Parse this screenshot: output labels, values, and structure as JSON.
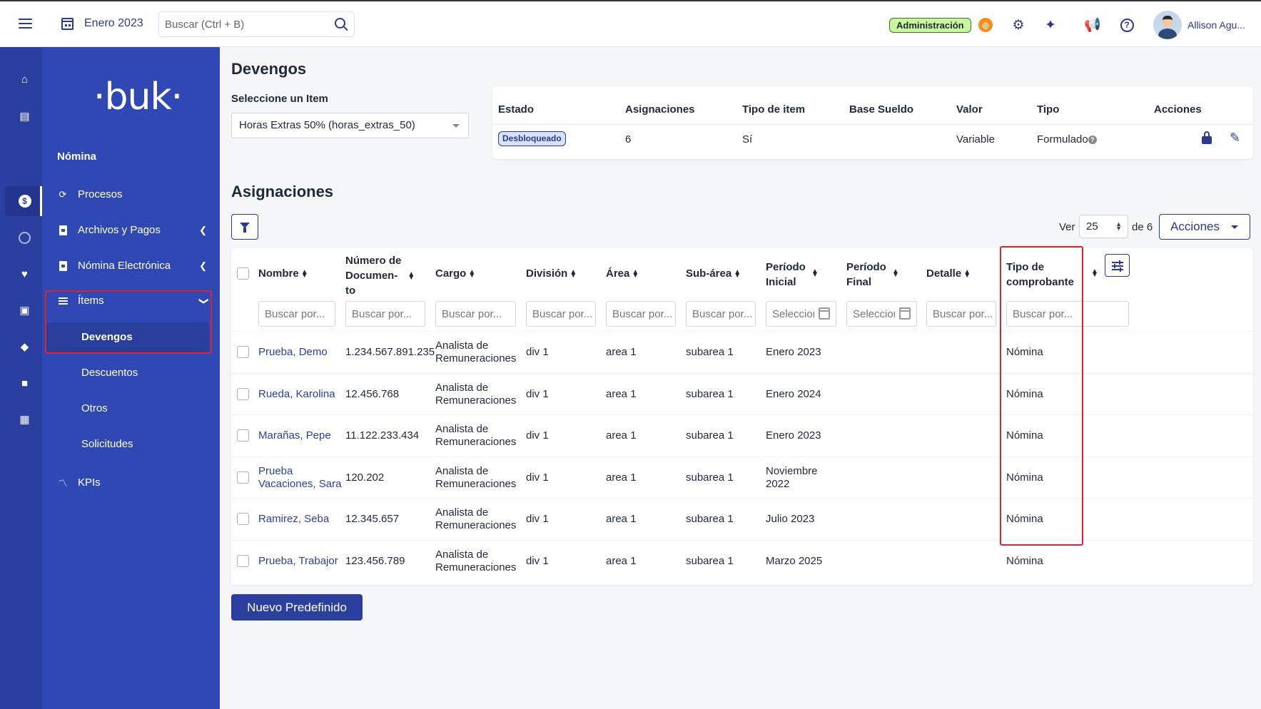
{
  "topbar": {
    "month": "Enero 2023",
    "search_placeholder": "Buscar (Ctrl + B)",
    "admin_badge": "Administración",
    "user_name": "Allison Agu..."
  },
  "sidebar": {
    "logo": "·buk·",
    "section": "Nómina",
    "items": {
      "procesos": "Procesos",
      "archivos": "Archivos y Pagos",
      "electronica": "Nómina Electrónica",
      "items": "Ítems",
      "kpis": "KPIs"
    },
    "sub_items": {
      "devengos": "Devengos",
      "descuentos": "Descuentos",
      "otros": "Otros",
      "solicitudes": "Solicitudes"
    }
  },
  "page": {
    "title": "Devengos",
    "select_label": "Seleccione un Item",
    "selected_item": "Horas Extras 50% (horas_extras_50)"
  },
  "info": {
    "headers": {
      "estado": "Estado",
      "asignaciones": "Asignaciones",
      "tipo_item": "Tipo de item",
      "base_sueldo": "Base Sueldo",
      "valor": "Valor",
      "tipo": "Tipo",
      "acciones": "Acciones"
    },
    "values": {
      "estado": "Desbloqueado",
      "asignaciones": "6",
      "tipo_item": "Sí",
      "base_sueldo": "",
      "valor": "Variable",
      "tipo": "Formulado"
    }
  },
  "asignaciones": {
    "title": "Asignaciones",
    "ver_label": "Ver",
    "per_page": "25",
    "de_label": "de 6",
    "acciones_label": "Acciones",
    "new_button": "Nuevo Predefinido"
  },
  "table": {
    "headers": {
      "nombre": "Nombre",
      "documento_1": "Número de",
      "documento_2": "Documen-",
      "documento_3": "to",
      "cargo": "Cargo",
      "division": "División",
      "area": "Área",
      "subarea": "Sub-área",
      "periodo_inicial_1": "Período",
      "periodo_inicial_2": "Inicial",
      "periodo_final_1": "Período",
      "periodo_final_2": "Final",
      "detalle": "Detalle",
      "tipo_comp_1": "Tipo de",
      "tipo_comp_2": "comprobante"
    },
    "filters": {
      "nombre": "Buscar por...",
      "documento": "Buscar por...",
      "cargo": "Buscar por...",
      "division": "Buscar por...",
      "area": "Buscar por...",
      "subarea": "Buscar por...",
      "periodo_inicial": "Selecciona",
      "periodo_final": "Selecciona",
      "detalle": "Buscar por...",
      "tipo_comp": "Buscar por..."
    },
    "rows": [
      {
        "nombre_1": "Prueba, Demo",
        "nombre_2": "",
        "documento": "1.234.567.891.235",
        "cargo_1": "Analista de",
        "cargo_2": "Remuneraciones",
        "division": "div 1",
        "area": "area 1",
        "subarea": "subarea 1",
        "periodo_1": "Enero 2023",
        "periodo_2": "",
        "tipo": "Nómina"
      },
      {
        "nombre_1": "Rueda, Karolina",
        "nombre_2": "",
        "documento": "12.456.768",
        "cargo_1": "Analista de",
        "cargo_2": "Remuneraciones",
        "division": "div 1",
        "area": "area 1",
        "subarea": "subarea 1",
        "periodo_1": "Enero 2024",
        "periodo_2": "",
        "tipo": "Nómina"
      },
      {
        "nombre_1": "Marañas, Pepe",
        "nombre_2": "",
        "documento": "11.122.233.434",
        "cargo_1": "Analista de",
        "cargo_2": "Remuneraciones",
        "division": "div 1",
        "area": "area 1",
        "subarea": "subarea 1",
        "periodo_1": "Enero 2023",
        "periodo_2": "",
        "tipo": "Nómina"
      },
      {
        "nombre_1": "Prueba",
        "nombre_2": "Vacaciones, Sara",
        "documento": "120.202",
        "cargo_1": "Analista de",
        "cargo_2": "Remuneraciones",
        "division": "div 1",
        "area": "area 1",
        "subarea": "subarea 1",
        "periodo_1": "Noviembre",
        "periodo_2": "2022",
        "tipo": "Nómina"
      },
      {
        "nombre_1": "Ramirez, Seba",
        "nombre_2": "",
        "documento": "12.345.657",
        "cargo_1": "Analista de",
        "cargo_2": "Remuneraciones",
        "division": "div 1",
        "area": "area 1",
        "subarea": "subarea 1",
        "periodo_1": "Julio 2023",
        "periodo_2": "",
        "tipo": "Nómina"
      },
      {
        "nombre_1": "Prueba, Trabajor",
        "nombre_2": "",
        "documento": "123.456.789",
        "cargo_1": "Analista de",
        "cargo_2": "Remuneraciones",
        "division": "div 1",
        "area": "area 1",
        "subarea": "subarea 1",
        "periodo_1": "Marzo 2025",
        "periodo_2": "",
        "tipo": "Nómina"
      }
    ]
  },
  "colors": {
    "primary": "#2b3fa0",
    "sidebar": "#3048b3",
    "highlight": "#e0242f"
  }
}
